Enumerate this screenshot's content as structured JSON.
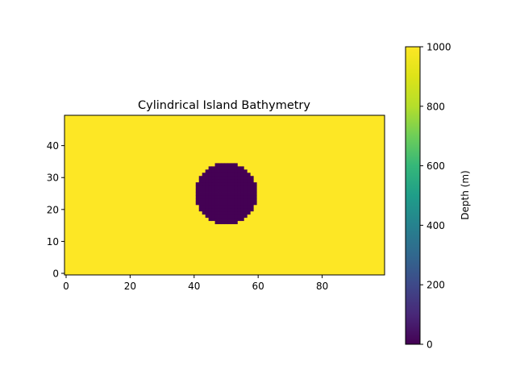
{
  "chart_data": {
    "type": "heatmap",
    "title": "Cylindrical Island Bathymetry",
    "x_ticks": [
      0,
      20,
      40,
      60,
      80
    ],
    "y_ticks": [
      0,
      10,
      20,
      30,
      40
    ],
    "xlim": [
      -0.5,
      99.5
    ],
    "ylim": [
      -0.5,
      49.5
    ],
    "grid": {
      "nx": 100,
      "ny": 50
    },
    "background_value": 1000,
    "island": {
      "center_x": 50,
      "center_y": 25,
      "radius": 9.5,
      "value": 0
    },
    "colorbar": {
      "label": "Depth (m)",
      "range": [
        0,
        1000
      ],
      "ticks": [
        0,
        200,
        400,
        600,
        800,
        1000
      ],
      "colormap": "viridis"
    },
    "grid_lines": false
  },
  "colors": {
    "high": "#fde725",
    "low": "#440154"
  }
}
